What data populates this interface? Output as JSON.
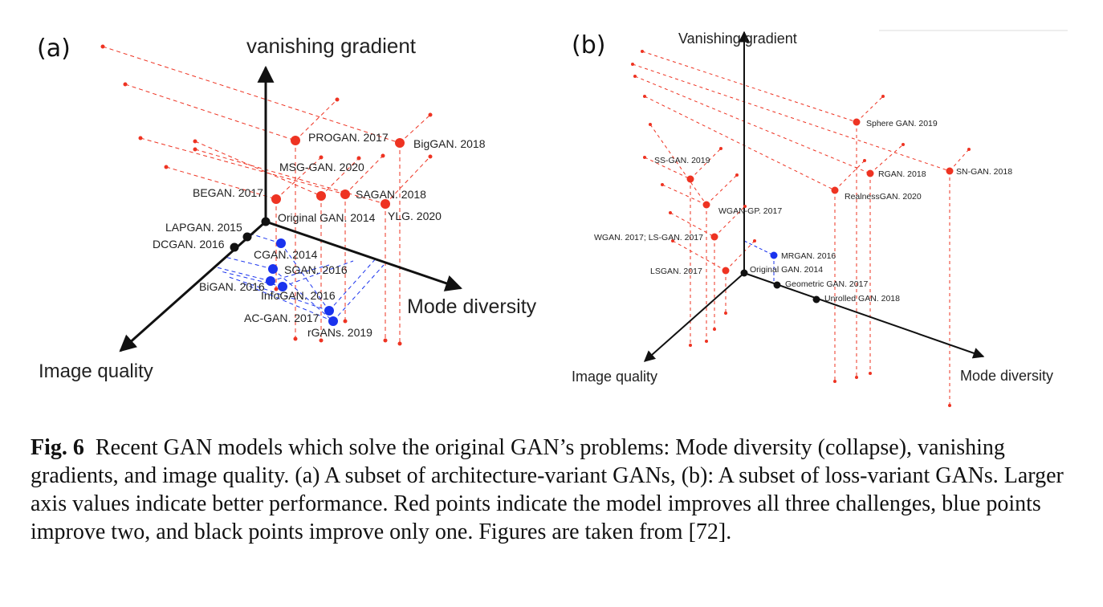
{
  "panels": [
    {
      "letter": "(a)",
      "axes": {
        "vertical": "vanishing gradient",
        "left": "Image quality",
        "right": "Mode diversity"
      },
      "models": [
        {
          "label": "PROGAN. 2017",
          "level": "red"
        },
        {
          "label": "BigGAN. 2018",
          "level": "red"
        },
        {
          "label": "MSG-GAN. 2020",
          "level": "red"
        },
        {
          "label": "BEGAN. 2017",
          "level": "red"
        },
        {
          "label": "SAGAN. 2018",
          "level": "red"
        },
        {
          "label": "YLG. 2020",
          "level": "red"
        },
        {
          "label": "Original GAN. 2014",
          "level": "black"
        },
        {
          "label": "LAPGAN. 2015",
          "level": "black"
        },
        {
          "label": "DCGAN. 2016",
          "level": "black"
        },
        {
          "label": "CGAN. 2014",
          "level": "blue"
        },
        {
          "label": "SGAN. 2016",
          "level": "blue"
        },
        {
          "label": "BiGAN. 2016",
          "level": "blue"
        },
        {
          "label": "InfoGAN. 2016",
          "level": "blue"
        },
        {
          "label": "AC-GAN. 2017",
          "level": "blue"
        },
        {
          "label": "rGANs. 2019",
          "level": "blue"
        }
      ]
    },
    {
      "letter": "(b)",
      "axes": {
        "vertical": "Vanishing gradient",
        "left": "Image quality",
        "right": "Mode diversity"
      },
      "models": [
        {
          "label": "Sphere GAN. 2019",
          "level": "red"
        },
        {
          "label": "SS-GAN. 2019",
          "level": "red"
        },
        {
          "label": "RGAN. 2018",
          "level": "red"
        },
        {
          "label": "SN-GAN. 2018",
          "level": "red"
        },
        {
          "label": "RealnessGAN. 2020",
          "level": "red"
        },
        {
          "label": "WGAN-GP. 2017",
          "level": "red"
        },
        {
          "label": "WGAN. 2017; LS-GAN. 2017",
          "level": "red"
        },
        {
          "label": "LSGAN. 2017",
          "level": "red"
        },
        {
          "label": "MRGAN. 2016",
          "level": "blue"
        },
        {
          "label": "Original GAN. 2014",
          "level": "black"
        },
        {
          "label": "Geometric GAN. 2017",
          "level": "black"
        },
        {
          "label": "Unrolled GAN. 2018",
          "level": "black"
        }
      ]
    }
  ],
  "colors": {
    "red": "#ee3322",
    "blue": "#1a33ee",
    "black": "#111111",
    "vertical_axis_label": "#a52318",
    "image_quality_label": "#1c2f8a",
    "mode_diversity_label": "#2d9a32"
  },
  "caption": {
    "prefix": "Fig. 6",
    "text": "Recent GAN models which solve the original GAN’s problems: Mode diversity (collapse), vanishing gradients, and image quality. (a) A subset of architecture-variant GANs, (b): A subset of loss-variant GANs. Larger axis values indicate better performance. Red points indicate the model improves all three challenges, blue points improve two, and black points improve only one. Figures are taken from [72]."
  }
}
